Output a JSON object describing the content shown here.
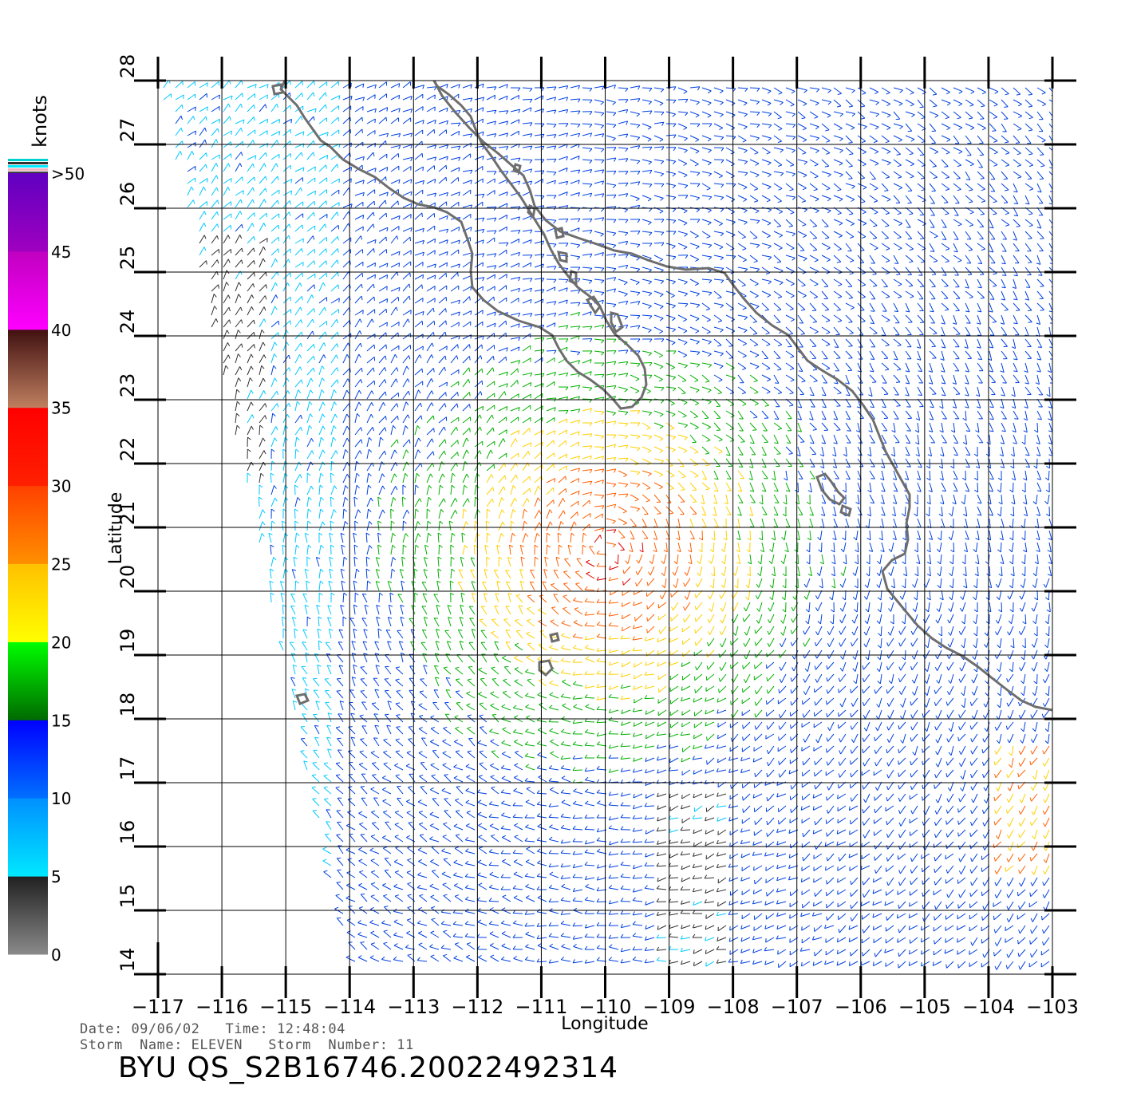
{
  "map": {
    "lon_ticks": [
      "−117",
      "−116",
      "−115",
      "−114",
      "−113",
      "−112",
      "−111",
      "−110",
      "−109",
      "−108",
      "−107",
      "−106",
      "−105",
      "−104",
      "−103"
    ],
    "lat_ticks": [
      "14",
      "15",
      "16",
      "17",
      "18",
      "19",
      "20",
      "21",
      "22",
      "23",
      "24",
      "25",
      "26",
      "27",
      "28"
    ],
    "xlabel": "Longitude",
    "ylabel": "Latitude",
    "lon_range": [
      -117,
      -103
    ],
    "lat_range": [
      14,
      28
    ],
    "grid": true
  },
  "colorbar": {
    "units": "knots",
    "labels": [
      "0",
      "5",
      "10",
      "15",
      "20",
      "25",
      "30",
      "35",
      "40",
      "45",
      ">50"
    ],
    "bands": [
      {
        "from": 0,
        "to": 5,
        "colors": [
          "#8a8a8a",
          "#202020"
        ]
      },
      {
        "from": 5,
        "to": 10,
        "colors": [
          "#00e8ff",
          "#0090ff"
        ]
      },
      {
        "from": 10,
        "to": 15,
        "colors": [
          "#0070ff",
          "#0000ff"
        ]
      },
      {
        "from": 15,
        "to": 20,
        "colors": [
          "#006a00",
          "#00ff00"
        ]
      },
      {
        "from": 20,
        "to": 25,
        "colors": [
          "#ffff00",
          "#ffc000"
        ]
      },
      {
        "from": 25,
        "to": 30,
        "colors": [
          "#ff9000",
          "#ff4000"
        ]
      },
      {
        "from": 30,
        "to": 35,
        "colors": [
          "#ff2000",
          "#ff0000"
        ]
      },
      {
        "from": 35,
        "to": 40,
        "colors": [
          "#c08060",
          "#401010"
        ]
      },
      {
        "from": 40,
        "to": 45,
        "colors": [
          "#ff00ff",
          "#c000c0"
        ]
      },
      {
        "from": 45,
        "to": 50,
        "colors": [
          "#a000c0",
          "#6000c0"
        ]
      }
    ]
  },
  "footer": {
    "date_label": "Date:",
    "date": "09/06/02",
    "time_label": "Time:",
    "time": "12:48:04",
    "storm_name_label": "Storm  Name:",
    "storm_name": "ELEVEN",
    "storm_number_label": "Storm  Number:",
    "storm_number": "11",
    "product_id": "BYU  QS_S2B16746.20022492314"
  },
  "colors": {
    "coastline": "#6e6e6e",
    "grid": "#000000"
  }
}
